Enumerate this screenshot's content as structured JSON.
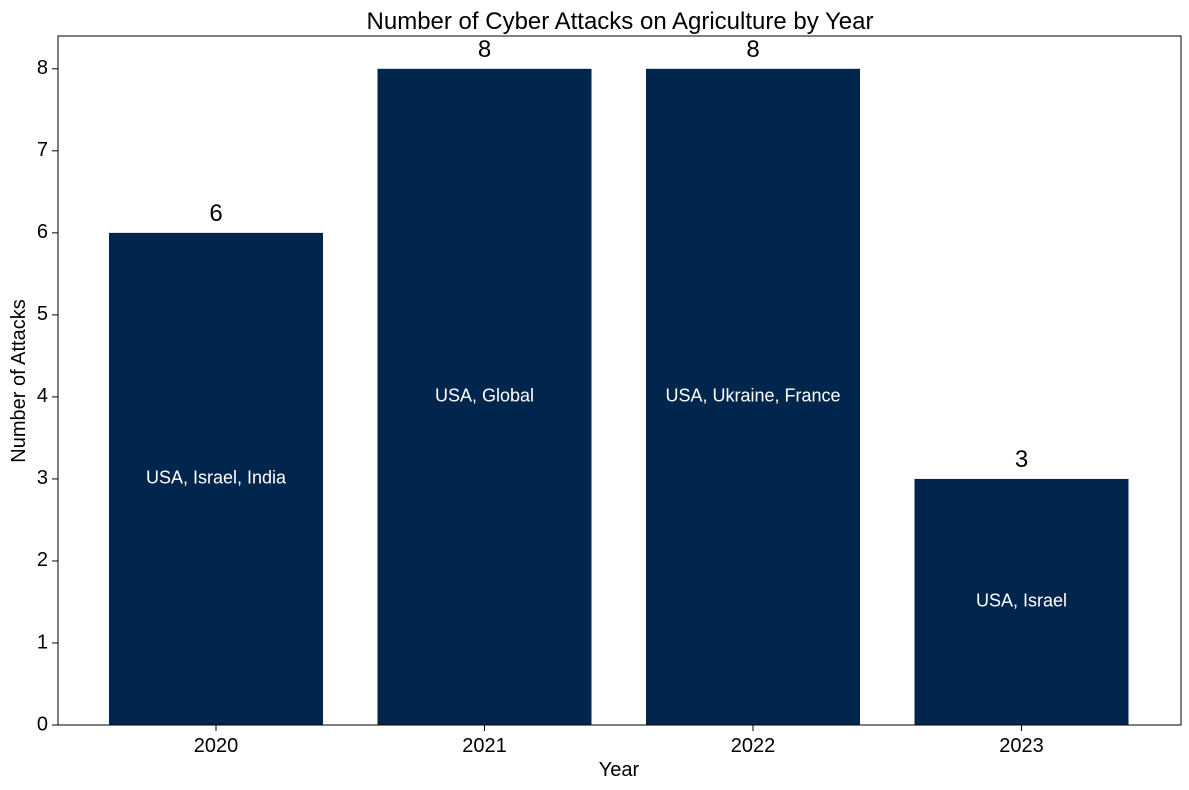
{
  "chart_data": {
    "type": "bar",
    "title": "Number of Cyber Attacks on Agriculture by Year",
    "xlabel": "Year",
    "ylabel": "Number of Attacks",
    "categories": [
      "2020",
      "2021",
      "2022",
      "2023"
    ],
    "values": [
      6,
      8,
      8,
      3
    ],
    "bar_annotations": [
      "USA, Israel, India",
      "USA, Global",
      "USA, Ukraine, France",
      "USA, Israel"
    ],
    "ylim": [
      0,
      8.4
    ],
    "yticks": [
      0,
      1,
      2,
      3,
      4,
      5,
      6,
      7,
      8
    ],
    "grid": false,
    "legend": "none",
    "bar_color": "#01264d"
  }
}
